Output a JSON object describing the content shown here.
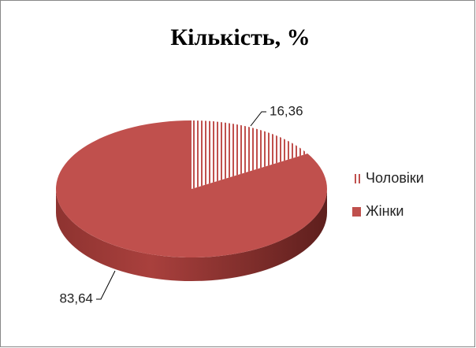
{
  "chart_data": {
    "type": "pie",
    "title": "Кількість, %",
    "categories": [
      "Чоловіки",
      "Жінки"
    ],
    "values": [
      16.36,
      83.64
    ],
    "value_labels": [
      "16,36",
      "83,64"
    ],
    "colors": [
      "#c0504d",
      "#c0504d"
    ],
    "patterns": [
      "stripes",
      "solid"
    ],
    "legend": "right"
  }
}
